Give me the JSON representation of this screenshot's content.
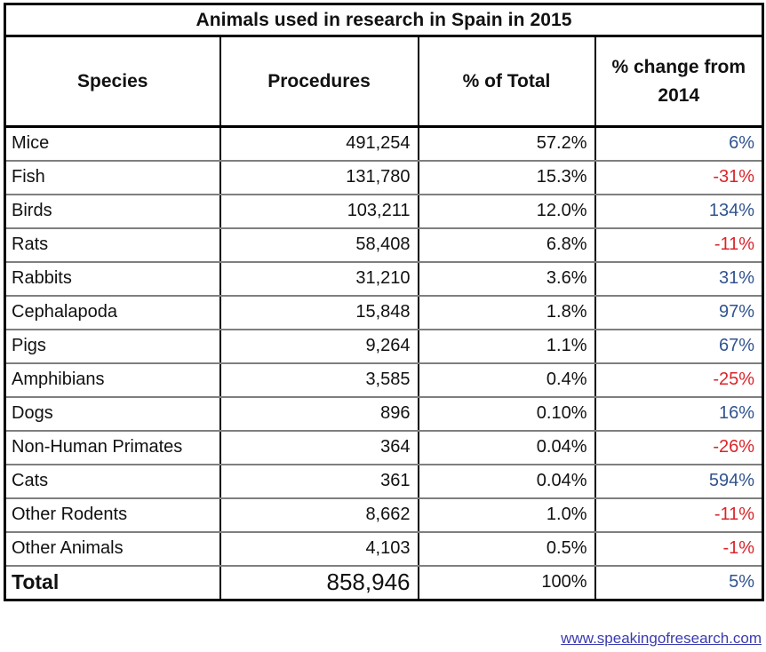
{
  "chart_data": {
    "type": "table",
    "title": "Animals used in research in Spain in 2015",
    "columns": [
      "Species",
      "Procedures",
      "% of Total",
      "% change from 2014"
    ],
    "rows": [
      {
        "species": "Mice",
        "procedures": "491,254",
        "pct_of_total": "57.2%",
        "change_from_2014": "6%",
        "trend": "positive"
      },
      {
        "species": "Fish",
        "procedures": "131,780",
        "pct_of_total": "15.3%",
        "change_from_2014": "-31%",
        "trend": "negative"
      },
      {
        "species": "Birds",
        "procedures": "103,211",
        "pct_of_total": "12.0%",
        "change_from_2014": "134%",
        "trend": "positive"
      },
      {
        "species": "Rats",
        "procedures": "58,408",
        "pct_of_total": "6.8%",
        "change_from_2014": "-11%",
        "trend": "negative"
      },
      {
        "species": "Rabbits",
        "procedures": "31,210",
        "pct_of_total": "3.6%",
        "change_from_2014": "31%",
        "trend": "positive"
      },
      {
        "species": "Cephalapoda",
        "procedures": "15,848",
        "pct_of_total": "1.8%",
        "change_from_2014": "97%",
        "trend": "positive"
      },
      {
        "species": "Pigs",
        "procedures": "9,264",
        "pct_of_total": "1.1%",
        "change_from_2014": "67%",
        "trend": "positive"
      },
      {
        "species": "Amphibians",
        "procedures": "3,585",
        "pct_of_total": "0.4%",
        "change_from_2014": "-25%",
        "trend": "negative"
      },
      {
        "species": "Dogs",
        "procedures": "896",
        "pct_of_total": "0.10%",
        "change_from_2014": "16%",
        "trend": "positive"
      },
      {
        "species": "Non-Human Primates",
        "procedures": "364",
        "pct_of_total": "0.04%",
        "change_from_2014": "-26%",
        "trend": "negative"
      },
      {
        "species": "Cats",
        "procedures": "361",
        "pct_of_total": "0.04%",
        "change_from_2014": "594%",
        "trend": "positive"
      },
      {
        "species": "Other Rodents",
        "procedures": "8,662",
        "pct_of_total": "1.0%",
        "change_from_2014": "-11%",
        "trend": "negative"
      },
      {
        "species": "Other Animals",
        "procedures": "4,103",
        "pct_of_total": "0.5%",
        "change_from_2014": "-1%",
        "trend": "negative"
      }
    ],
    "total": {
      "species": "Total",
      "procedures": "858,946",
      "pct_of_total": "100%",
      "change_from_2014": "5%",
      "trend": "positive"
    }
  },
  "footer": {
    "link_text": "www.speakingofresearch.com"
  },
  "colors": {
    "positive_change": "#31538f",
    "negative_change": "#d9252b",
    "link": "#3b3bb0",
    "border": "#000000",
    "row_separator": "#7f7f7f"
  }
}
